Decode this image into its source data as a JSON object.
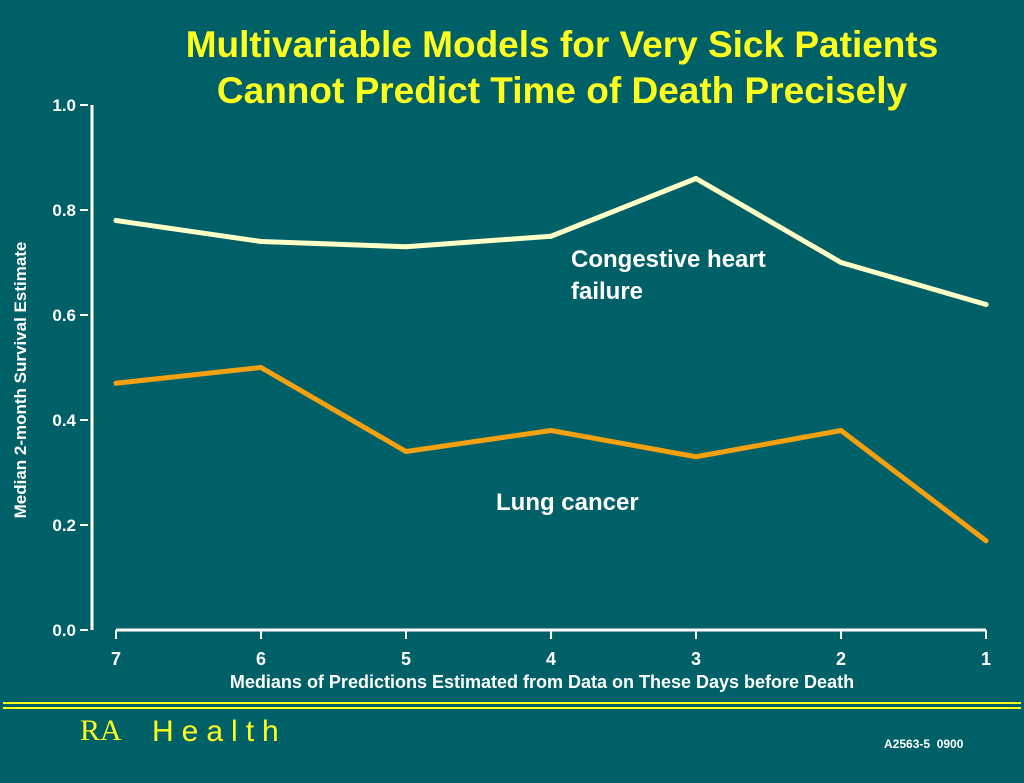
{
  "title": {
    "line1": "Multivariable Models for Very Sick Patients",
    "line2": "Cannot Predict Time of Death Precisely"
  },
  "chart_data": {
    "type": "line",
    "title": "Multivariable Models for Very Sick Patients Cannot Predict Time of Death Precisely",
    "xlabel": "Medians of Predictions Estimated from Data on These Days before Death",
    "ylabel": "Median 2-month Survival Estimate",
    "categories": [
      "7",
      "6",
      "5",
      "4",
      "3",
      "2",
      "1"
    ],
    "ylim": [
      0,
      1.0
    ],
    "yticks": [
      "0.0",
      "0.2",
      "0.4",
      "0.6",
      "0.8",
      "1.0"
    ],
    "grid": false,
    "legend": "none",
    "series": [
      {
        "name": "Congestive heart failure",
        "color": "#ffffc8",
        "values": [
          0.78,
          0.74,
          0.73,
          0.75,
          0.86,
          0.7,
          0.62
        ]
      },
      {
        "name": "Lung cancer",
        "color": "#f5a00f",
        "values": [
          0.47,
          0.5,
          0.34,
          0.38,
          0.33,
          0.38,
          0.17
        ]
      }
    ]
  },
  "labels": {
    "chf": "Congestive heart failure",
    "lung": "Lung cancer"
  },
  "footer": {
    "logo_ra": "RA",
    "logo_health": "Health",
    "code": "A2563-5  0900",
    "brand_color": "#ffff1e",
    "rule_color": "#ffff1e"
  }
}
